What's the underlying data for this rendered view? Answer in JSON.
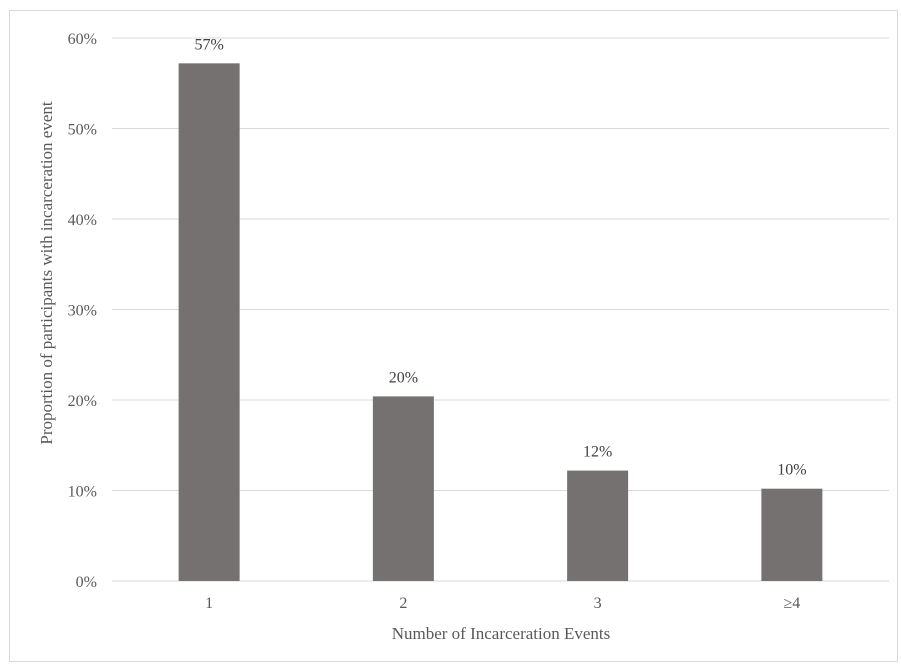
{
  "chart_data": {
    "type": "bar",
    "title": "",
    "xlabel": "Number of  Incarceration Events",
    "ylabel": "Proportion of  participants  with incarceration event",
    "categories": [
      "1",
      "2",
      "3",
      "≥4"
    ],
    "values": [
      57.2,
      20.4,
      12.2,
      10.2
    ],
    "data_labels": [
      "57%",
      "20%",
      "12%",
      "10%"
    ],
    "ylim": [
      0,
      60
    ],
    "yticks": [
      0,
      10,
      20,
      30,
      40,
      50,
      60
    ],
    "ytick_labels": [
      "0%",
      "10%",
      "20%",
      "30%",
      "40%",
      "50%",
      "60%"
    ],
    "grid": true,
    "legend": "none",
    "bar_color": "#767171",
    "grid_color": "#d9d9d9"
  }
}
